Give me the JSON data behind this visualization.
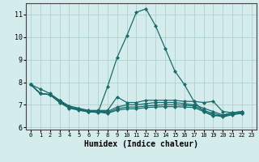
{
  "xlabel": "Humidex (Indice chaleur)",
  "background_color": "#d4ecec",
  "grid_color": "#b0d0d0",
  "line_color": "#1a6b6b",
  "xlim": [
    -0.5,
    23.5
  ],
  "ylim": [
    5.9,
    11.5
  ],
  "yticks": [
    6,
    7,
    8,
    9,
    10,
    11
  ],
  "xticks": [
    0,
    1,
    2,
    3,
    4,
    5,
    6,
    7,
    8,
    9,
    10,
    11,
    12,
    13,
    14,
    15,
    16,
    17,
    18,
    19,
    20,
    21,
    22,
    23
  ],
  "series": [
    [
      7.9,
      7.7,
      7.5,
      7.2,
      6.9,
      6.8,
      6.7,
      6.65,
      7.8,
      9.1,
      10.05,
      11.1,
      11.25,
      10.5,
      9.5,
      8.5,
      7.9,
      7.15,
      6.7,
      6.5,
      6.55,
      6.65,
      6.7
    ],
    [
      7.9,
      7.5,
      7.45,
      7.2,
      6.95,
      6.85,
      6.75,
      6.75,
      6.75,
      7.35,
      7.1,
      7.1,
      7.2,
      7.2,
      7.2,
      7.2,
      7.15,
      7.15,
      7.1,
      7.15,
      6.7,
      6.65,
      6.7
    ],
    [
      7.9,
      7.5,
      7.45,
      7.15,
      6.9,
      6.82,
      6.72,
      6.72,
      6.7,
      6.9,
      7.0,
      7.0,
      7.05,
      7.1,
      7.1,
      7.1,
      7.05,
      7.0,
      6.85,
      6.7,
      6.55,
      6.6,
      6.65
    ],
    [
      7.9,
      7.5,
      7.45,
      7.12,
      6.88,
      6.78,
      6.7,
      6.7,
      6.65,
      6.82,
      6.9,
      6.9,
      6.95,
      6.98,
      7.0,
      7.0,
      6.98,
      6.95,
      6.75,
      6.62,
      6.5,
      6.58,
      6.63
    ],
    [
      7.9,
      7.5,
      7.45,
      7.1,
      6.85,
      6.76,
      6.68,
      6.68,
      6.62,
      6.76,
      6.82,
      6.82,
      6.88,
      6.9,
      6.92,
      6.92,
      6.9,
      6.88,
      6.7,
      6.56,
      6.46,
      6.56,
      6.62
    ]
  ]
}
